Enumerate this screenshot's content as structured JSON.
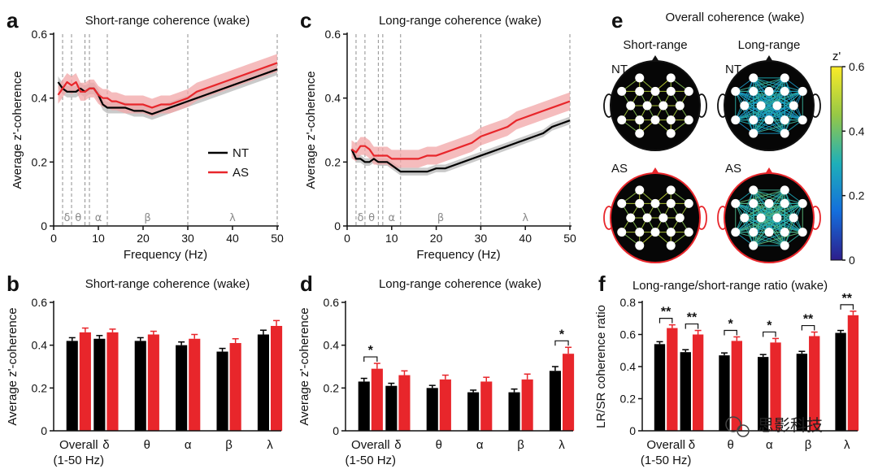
{
  "panels": {
    "a": {
      "letter": "a",
      "title": "Short-range coherence (wake)"
    },
    "b": {
      "letter": "b",
      "title": "Short-range coherence (wake)"
    },
    "c": {
      "letter": "c",
      "title": "Long-range coherence (wake)"
    },
    "d": {
      "letter": "d",
      "title": "Long-range coherence (wake)"
    },
    "e": {
      "letter": "e",
      "title": "Overall coherence (wake)",
      "col_short": "Short-range",
      "col_long": "Long-range",
      "row_nt": "NT",
      "row_as": "AS",
      "colorbar_label": "z'"
    },
    "f": {
      "letter": "f",
      "title": "Long-range/short-range ratio (wake)"
    }
  },
  "legend": {
    "nt": "NT",
    "as": "AS"
  },
  "colors": {
    "nt": "#000000",
    "as": "#e8262b",
    "as_shade": "#f2a5a7",
    "nt_shade": "#bdbdbd",
    "head_nt": "#111111",
    "head_as": "#e8262b"
  },
  "watermark": "思影科技",
  "chart_data": [
    {
      "id": "a",
      "type": "line",
      "title": "Short-range coherence (wake)",
      "xlabel": "Frequency (Hz)",
      "ylabel": "Average z'-coherence",
      "xlim": [
        0,
        50
      ],
      "ylim": [
        0,
        0.6
      ],
      "xticks": [
        0,
        10,
        20,
        30,
        40,
        50
      ],
      "yticks": [
        0,
        0.2,
        0.4,
        0.6
      ],
      "band_edges": [
        2,
        4,
        7,
        8,
        12,
        30,
        50
      ],
      "band_labels": [
        {
          "text": "δ",
          "x": 3
        },
        {
          "text": "θ",
          "x": 5.5
        },
        {
          "text": "α",
          "x": 10
        },
        {
          "text": "β",
          "x": 21
        },
        {
          "text": "λ",
          "x": 40
        }
      ],
      "series": [
        {
          "name": "NT",
          "x": [
            1,
            2,
            3,
            4,
            5,
            6,
            7,
            8,
            9,
            10,
            11,
            12,
            13,
            14,
            16,
            18,
            20,
            22,
            24,
            26,
            28,
            30,
            32,
            34,
            36,
            38,
            40,
            42,
            44,
            46,
            48,
            50
          ],
          "y": [
            0.45,
            0.43,
            0.42,
            0.42,
            0.42,
            0.43,
            0.42,
            0.43,
            0.43,
            0.41,
            0.38,
            0.37,
            0.37,
            0.37,
            0.37,
            0.36,
            0.36,
            0.35,
            0.36,
            0.37,
            0.38,
            0.39,
            0.4,
            0.41,
            0.42,
            0.43,
            0.44,
            0.45,
            0.46,
            0.47,
            0.48,
            0.49
          ],
          "band": 0.018
        },
        {
          "name": "AS",
          "x": [
            1,
            2,
            3,
            4,
            5,
            6,
            7,
            8,
            9,
            10,
            11,
            12,
            13,
            14,
            16,
            18,
            20,
            22,
            24,
            26,
            28,
            30,
            32,
            34,
            36,
            38,
            40,
            42,
            44,
            46,
            48,
            50
          ],
          "y": [
            0.41,
            0.43,
            0.45,
            0.44,
            0.45,
            0.42,
            0.42,
            0.43,
            0.43,
            0.41,
            0.4,
            0.4,
            0.39,
            0.39,
            0.38,
            0.38,
            0.38,
            0.37,
            0.38,
            0.38,
            0.39,
            0.4,
            0.42,
            0.43,
            0.44,
            0.45,
            0.46,
            0.47,
            0.48,
            0.49,
            0.5,
            0.51
          ],
          "band": 0.028
        }
      ]
    },
    {
      "id": "b",
      "type": "bar",
      "title": "Short-range coherence (wake)",
      "ylabel": "Average z'-coherence",
      "ylim": [
        0,
        0.6
      ],
      "yticks": [
        0,
        0.2,
        0.4,
        0.6
      ],
      "categories": [
        "Overall\n(1-50 Hz)",
        "δ",
        "θ",
        "α",
        "β",
        "λ"
      ],
      "series": [
        {
          "name": "NT",
          "values": [
            0.42,
            0.43,
            0.42,
            0.4,
            0.37,
            0.45
          ],
          "err": [
            0.015,
            0.015,
            0.015,
            0.015,
            0.015,
            0.02
          ]
        },
        {
          "name": "AS",
          "values": [
            0.46,
            0.46,
            0.45,
            0.43,
            0.41,
            0.49
          ],
          "err": [
            0.02,
            0.015,
            0.015,
            0.02,
            0.02,
            0.025
          ]
        }
      ],
      "significance": []
    },
    {
      "id": "c",
      "type": "line",
      "title": "Long-range coherence (wake)",
      "xlabel": "Frequency (Hz)",
      "ylabel": "Average z'-coherence",
      "xlim": [
        0,
        50
      ],
      "ylim": [
        0,
        0.6
      ],
      "xticks": [
        0,
        10,
        20,
        30,
        40,
        50
      ],
      "yticks": [
        0,
        0.2,
        0.4,
        0.6
      ],
      "band_edges": [
        2,
        4,
        7,
        8,
        12,
        30,
        50
      ],
      "band_labels": [
        {
          "text": "δ",
          "x": 3
        },
        {
          "text": "θ",
          "x": 5.5
        },
        {
          "text": "α",
          "x": 10
        },
        {
          "text": "β",
          "x": 21
        },
        {
          "text": "λ",
          "x": 40
        }
      ],
      "series": [
        {
          "name": "NT",
          "x": [
            1,
            2,
            3,
            4,
            5,
            6,
            7,
            8,
            9,
            10,
            11,
            12,
            13,
            14,
            16,
            18,
            20,
            22,
            24,
            26,
            28,
            30,
            32,
            34,
            36,
            38,
            40,
            42,
            44,
            46,
            48,
            50
          ],
          "y": [
            0.24,
            0.21,
            0.21,
            0.2,
            0.2,
            0.21,
            0.2,
            0.2,
            0.2,
            0.19,
            0.18,
            0.17,
            0.17,
            0.17,
            0.17,
            0.17,
            0.18,
            0.18,
            0.19,
            0.2,
            0.21,
            0.22,
            0.23,
            0.24,
            0.25,
            0.26,
            0.27,
            0.28,
            0.29,
            0.31,
            0.32,
            0.33
          ],
          "band": 0.012
        },
        {
          "name": "AS",
          "x": [
            1,
            2,
            3,
            4,
            5,
            6,
            7,
            8,
            9,
            10,
            11,
            12,
            13,
            14,
            16,
            18,
            20,
            22,
            24,
            26,
            28,
            30,
            32,
            34,
            36,
            38,
            40,
            42,
            44,
            46,
            48,
            50
          ],
          "y": [
            0.24,
            0.23,
            0.25,
            0.25,
            0.24,
            0.22,
            0.22,
            0.22,
            0.22,
            0.21,
            0.21,
            0.21,
            0.21,
            0.21,
            0.21,
            0.22,
            0.22,
            0.23,
            0.24,
            0.25,
            0.26,
            0.28,
            0.29,
            0.3,
            0.31,
            0.33,
            0.34,
            0.35,
            0.36,
            0.37,
            0.38,
            0.39
          ],
          "band": 0.028
        }
      ]
    },
    {
      "id": "d",
      "type": "bar",
      "title": "Long-range coherence (wake)",
      "ylabel": "Average z'-coherence",
      "ylim": [
        0,
        0.6
      ],
      "yticks": [
        0,
        0.2,
        0.4,
        0.6
      ],
      "categories": [
        "Overall\n(1-50 Hz)",
        "δ",
        "θ",
        "α",
        "β",
        "λ"
      ],
      "series": [
        {
          "name": "NT",
          "values": [
            0.23,
            0.21,
            0.2,
            0.18,
            0.18,
            0.28
          ],
          "err": [
            0.015,
            0.012,
            0.012,
            0.01,
            0.015,
            0.02
          ]
        },
        {
          "name": "AS",
          "values": [
            0.29,
            0.26,
            0.24,
            0.23,
            0.24,
            0.36
          ],
          "err": [
            0.025,
            0.02,
            0.02,
            0.02,
            0.025,
            0.03
          ]
        }
      ],
      "significance": [
        {
          "index": 0,
          "label": "*"
        },
        {
          "index": 5,
          "label": "*"
        }
      ]
    },
    {
      "id": "f",
      "type": "bar",
      "title": "Long-range/short-range ratio (wake)",
      "ylabel": "LR/SR coherence ratio",
      "ylim": [
        0,
        0.8
      ],
      "yticks": [
        0,
        0.2,
        0.4,
        0.6,
        0.8
      ],
      "categories": [
        "Overall\n(1-50 Hz)",
        "δ",
        "θ",
        "α",
        "β",
        "λ"
      ],
      "series": [
        {
          "name": "NT",
          "values": [
            0.54,
            0.49,
            0.47,
            0.46,
            0.48,
            0.61
          ],
          "err": [
            0.015,
            0.015,
            0.015,
            0.015,
            0.015,
            0.015
          ]
        },
        {
          "name": "AS",
          "values": [
            0.64,
            0.6,
            0.56,
            0.55,
            0.59,
            0.72
          ],
          "err": [
            0.02,
            0.025,
            0.025,
            0.025,
            0.025,
            0.025
          ]
        }
      ],
      "significance": [
        {
          "index": 0,
          "label": "**"
        },
        {
          "index": 1,
          "label": "**"
        },
        {
          "index": 2,
          "label": "*"
        },
        {
          "index": 3,
          "label": "*"
        },
        {
          "index": 4,
          "label": "**"
        },
        {
          "index": 5,
          "label": "**"
        }
      ]
    },
    {
      "id": "e",
      "type": "heatmap",
      "title": "Overall coherence (wake)",
      "colorbar": {
        "label": "z'",
        "range": [
          0,
          0.6
        ],
        "ticks": [
          0,
          0.2,
          0.4,
          0.6
        ]
      },
      "maps": [
        {
          "group": "NT",
          "range": "Short-range",
          "mean_z": 0.42
        },
        {
          "group": "NT",
          "range": "Long-range",
          "mean_z": 0.23
        },
        {
          "group": "AS",
          "range": "Short-range",
          "mean_z": 0.46
        },
        {
          "group": "AS",
          "range": "Long-range",
          "mean_z": 0.29
        }
      ]
    }
  ]
}
